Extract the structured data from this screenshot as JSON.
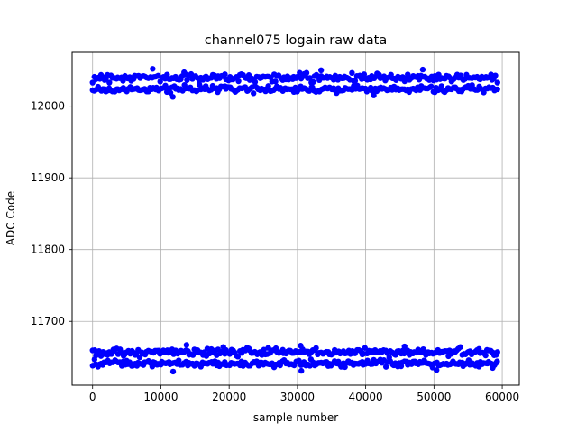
{
  "chart_data": {
    "type": "scatter",
    "title": "channel075 logain raw data",
    "xlabel": "sample number",
    "ylabel": "ADC Code",
    "xlim": [
      -3000,
      62500
    ],
    "ylim": [
      11611,
      12075
    ],
    "x_ticks": [
      0,
      10000,
      20000,
      30000,
      40000,
      50000,
      60000
    ],
    "x_tick_labels": [
      "0",
      "10000",
      "20000",
      "30000",
      "40000",
      "50000",
      "60000"
    ],
    "y_ticks": [
      11700,
      11800,
      11900,
      12000
    ],
    "y_tick_labels": [
      "11700",
      "11800",
      "11900",
      "12000"
    ],
    "grid": true,
    "marker_color": "#0000ff",
    "series": [
      {
        "x_range": [
          0,
          59300
        ],
        "bands": [
          {
            "center": 12040,
            "spread": 6,
            "outliers": [
              12052,
              12050,
              12051
            ]
          },
          {
            "center": 12024,
            "spread": 5,
            "outliers": [
              12013,
              12015
            ]
          },
          {
            "center": 11657,
            "spread": 6,
            "outliers": [
              11667,
              11666,
              11665
            ]
          },
          {
            "center": 11641,
            "spread": 5,
            "outliers": [
              11630,
              11631,
              11632
            ]
          }
        ]
      }
    ]
  }
}
